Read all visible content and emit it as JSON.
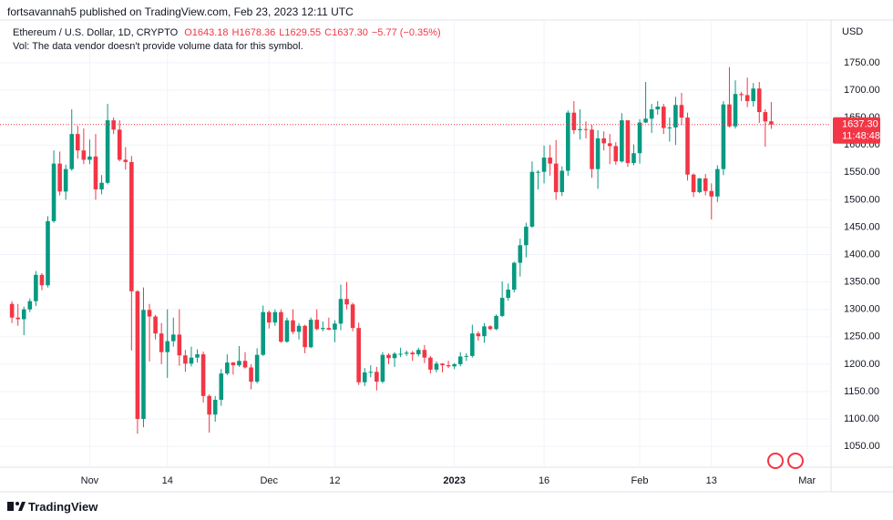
{
  "header": "fortsavannah5 published on TradingView.com, Feb 23, 2023 12:11 UTC",
  "footer": "TradingView",
  "chart_data": {
    "type": "candlestick",
    "symbol": "Ethereum / U.S. Dollar, 1D, CRYPTO",
    "legend": [
      "O1643.18",
      "H1678.36",
      "L1629.55",
      "C1637.30",
      "−5.77 (−0.35%)"
    ],
    "volume_note": "Vol: The data vendor doesn't provide volume data for this symbol.",
    "currency": "USD",
    "x": [
      "2022-10-19",
      "2022-10-20",
      "2022-10-21",
      "2022-10-22",
      "2022-10-23",
      "2022-10-24",
      "2022-10-25",
      "2022-10-26",
      "2022-10-27",
      "2022-10-28",
      "2022-10-29",
      "2022-10-30",
      "2022-10-31",
      "2022-11-01",
      "2022-11-02",
      "2022-11-03",
      "2022-11-04",
      "2022-11-05",
      "2022-11-06",
      "2022-11-07",
      "2022-11-08",
      "2022-11-09",
      "2022-11-10",
      "2022-11-11",
      "2022-11-12",
      "2022-11-13",
      "2022-11-14",
      "2022-11-15",
      "2022-11-16",
      "2022-11-17",
      "2022-11-18",
      "2022-11-19",
      "2022-11-20",
      "2022-11-21",
      "2022-11-22",
      "2022-11-23",
      "2022-11-24",
      "2022-11-25",
      "2022-11-26",
      "2022-11-27",
      "2022-11-28",
      "2022-11-29",
      "2022-11-30",
      "2022-12-01",
      "2022-12-02",
      "2022-12-03",
      "2022-12-04",
      "2022-12-05",
      "2022-12-06",
      "2022-12-07",
      "2022-12-08",
      "2022-12-09",
      "2022-12-10",
      "2022-12-11",
      "2022-12-12",
      "2022-12-13",
      "2022-12-14",
      "2022-12-15",
      "2022-12-16",
      "2022-12-17",
      "2022-12-18",
      "2022-12-19",
      "2022-12-20",
      "2022-12-21",
      "2022-12-22",
      "2022-12-23",
      "2022-12-24",
      "2022-12-25",
      "2022-12-26",
      "2022-12-27",
      "2022-12-28",
      "2022-12-29",
      "2022-12-30",
      "2022-12-31",
      "2023-01-01",
      "2023-01-02",
      "2023-01-03",
      "2023-01-04",
      "2023-01-05",
      "2023-01-06",
      "2023-01-07",
      "2023-01-08",
      "2023-01-09",
      "2023-01-10",
      "2023-01-11",
      "2023-01-12",
      "2023-01-13",
      "2023-01-14",
      "2023-01-15",
      "2023-01-16",
      "2023-01-17",
      "2023-01-18",
      "2023-01-19",
      "2023-01-20",
      "2023-01-21",
      "2023-01-22",
      "2023-01-23",
      "2023-01-24",
      "2023-01-25",
      "2023-01-26",
      "2023-01-27",
      "2023-01-28",
      "2023-01-29",
      "2023-01-30",
      "2023-01-31",
      "2023-02-01",
      "2023-02-02",
      "2023-02-03",
      "2023-02-04",
      "2023-02-05",
      "2023-02-06",
      "2023-02-07",
      "2023-02-08",
      "2023-02-09",
      "2023-02-10",
      "2023-02-11",
      "2023-02-12",
      "2023-02-13",
      "2023-02-14",
      "2023-02-15",
      "2023-02-16",
      "2023-02-17",
      "2023-02-18",
      "2023-02-19",
      "2023-02-20",
      "2023-02-21",
      "2023-02-22",
      "2023-02-23"
    ],
    "open": [
      1310,
      1285,
      1282,
      1300,
      1315,
      1363,
      1344,
      1461,
      1566,
      1515,
      1556,
      1620,
      1590,
      1573,
      1579,
      1519,
      1531,
      1645,
      1628,
      1573,
      1569,
      1333,
      1100,
      1299,
      1287,
      1256,
      1222,
      1242,
      1254,
      1216,
      1201,
      1212,
      1218,
      1142,
      1108,
      1135,
      1183,
      1203,
      1198,
      1206,
      1194,
      1168,
      1217,
      1295,
      1276,
      1295,
      1241,
      1280,
      1259,
      1270,
      1231,
      1281,
      1264,
      1266,
      1263,
      1274,
      1319,
      1309,
      1266,
      1167,
      1185,
      1186,
      1168,
      1217,
      1211,
      1219,
      1219,
      1221,
      1218,
      1226,
      1212,
      1190,
      1201,
      1198,
      1196,
      1200,
      1214,
      1215,
      1256,
      1251,
      1269,
      1264,
      1288,
      1321,
      1336,
      1385,
      1417,
      1451,
      1551,
      1551,
      1577,
      1566,
      1514,
      1553,
      1659,
      1627,
      1629,
      1628,
      1556,
      1612,
      1603,
      1598,
      1570,
      1645,
      1567,
      1585,
      1641,
      1648,
      1665,
      1670,
      1631,
      1632,
      1673,
      1650,
      1546,
      1514,
      1539,
      1516,
      1506,
      1556,
      1674,
      1634,
      1693,
      1691,
      1680,
      1703,
      1660,
      1643.18
    ],
    "high": [
      1315,
      1310,
      1305,
      1320,
      1370,
      1366,
      1470,
      1590,
      1588,
      1564,
      1665,
      1635,
      1630,
      1610,
      1620,
      1545,
      1675,
      1650,
      1645,
      1596,
      1580,
      1335,
      1340,
      1310,
      1290,
      1275,
      1300,
      1285,
      1300,
      1226,
      1232,
      1227,
      1223,
      1145,
      1142,
      1191,
      1218,
      1204,
      1233,
      1222,
      1200,
      1229,
      1307,
      1298,
      1300,
      1300,
      1285,
      1300,
      1275,
      1272,
      1285,
      1300,
      1278,
      1285,
      1280,
      1345,
      1350,
      1312,
      1276,
      1193,
      1198,
      1195,
      1222,
      1220,
      1222,
      1230,
      1225,
      1224,
      1230,
      1235,
      1215,
      1205,
      1202,
      1206,
      1202,
      1222,
      1220,
      1272,
      1260,
      1275,
      1271,
      1291,
      1351,
      1347,
      1387,
      1429,
      1458,
      1570,
      1554,
      1599,
      1600,
      1609,
      1561,
      1663,
      1680,
      1665,
      1643,
      1637,
      1627,
      1625,
      1620,
      1605,
      1658,
      1645,
      1601,
      1647,
      1715,
      1675,
      1680,
      1675,
      1650,
      1688,
      1695,
      1659,
      1548,
      1540,
      1547,
      1530,
      1563,
      1680,
      1742,
      1718,
      1697,
      1723,
      1713,
      1715,
      1665,
      1678.36
    ],
    "low": [
      1275,
      1270,
      1253,
      1295,
      1306,
      1335,
      1340,
      1458,
      1508,
      1500,
      1553,
      1575,
      1565,
      1565,
      1500,
      1510,
      1528,
      1620,
      1570,
      1555,
      1225,
      1073,
      1085,
      1205,
      1245,
      1200,
      1175,
      1232,
      1197,
      1186,
      1196,
      1203,
      1130,
      1075,
      1095,
      1124,
      1180,
      1181,
      1195,
      1192,
      1154,
      1165,
      1215,
      1265,
      1270,
      1239,
      1239,
      1255,
      1245,
      1220,
      1229,
      1262,
      1260,
      1262,
      1240,
      1262,
      1300,
      1260,
      1162,
      1160,
      1176,
      1152,
      1165,
      1200,
      1195,
      1213,
      1215,
      1206,
      1214,
      1202,
      1183,
      1185,
      1185,
      1193,
      1191,
      1196,
      1206,
      1212,
      1243,
      1239,
      1262,
      1262,
      1286,
      1316,
      1331,
      1360,
      1395,
      1449,
      1519,
      1530,
      1544,
      1500,
      1507,
      1544,
      1620,
      1610,
      1612,
      1540,
      1520,
      1590,
      1565,
      1564,
      1568,
      1560,
      1563,
      1566,
      1640,
      1622,
      1655,
      1620,
      1606,
      1600,
      1636,
      1535,
      1505,
      1512,
      1508,
      1464,
      1496,
      1545,
      1632,
      1630,
      1680,
      1669,
      1670,
      1640,
      1597,
      1629.55
    ],
    "close": [
      1285,
      1282,
      1300,
      1315,
      1363,
      1344,
      1461,
      1566,
      1515,
      1556,
      1620,
      1590,
      1573,
      1579,
      1519,
      1531,
      1645,
      1628,
      1573,
      1569,
      1333,
      1100,
      1299,
      1287,
      1256,
      1222,
      1242,
      1254,
      1216,
      1201,
      1212,
      1218,
      1142,
      1108,
      1135,
      1183,
      1203,
      1198,
      1206,
      1194,
      1168,
      1217,
      1295,
      1276,
      1295,
      1241,
      1280,
      1259,
      1270,
      1231,
      1281,
      1264,
      1266,
      1263,
      1274,
      1319,
      1309,
      1266,
      1167,
      1185,
      1186,
      1168,
      1217,
      1211,
      1219,
      1219,
      1221,
      1218,
      1226,
      1212,
      1190,
      1201,
      1198,
      1196,
      1200,
      1214,
      1215,
      1256,
      1251,
      1269,
      1264,
      1288,
      1321,
      1336,
      1385,
      1417,
      1451,
      1551,
      1551,
      1577,
      1566,
      1514,
      1553,
      1659,
      1627,
      1629,
      1628,
      1556,
      1612,
      1603,
      1598,
      1570,
      1645,
      1567,
      1585,
      1641,
      1648,
      1665,
      1670,
      1631,
      1632,
      1673,
      1650,
      1546,
      1514,
      1539,
      1516,
      1506,
      1556,
      1674,
      1634,
      1693,
      1691,
      1680,
      1703,
      1660,
      1643,
      1637.3
    ],
    "up_color": "#089981",
    "down_color": "#f23645",
    "xlim": [
      "2022-10-17",
      "2023-03-05"
    ],
    "xticks": [
      {
        "value": "2022-11-01",
        "label": "Nov"
      },
      {
        "value": "2022-11-14",
        "label": "14"
      },
      {
        "value": "2022-12-01",
        "label": "Dec"
      },
      {
        "value": "2022-12-12",
        "label": "12"
      },
      {
        "value": "2023-01-01",
        "label": "2023"
      },
      {
        "value": "2023-01-16",
        "label": "16"
      },
      {
        "value": "2023-02-01",
        "label": "Feb"
      },
      {
        "value": "2023-02-13",
        "label": "13"
      },
      {
        "value": "2023-03-01",
        "label": "Mar"
      }
    ],
    "ylim": [
      1012,
      1828
    ],
    "yticks": [
      {
        "value": 1050,
        "label": "1050.00"
      },
      {
        "value": 1100,
        "label": "1100.00"
      },
      {
        "value": 1150,
        "label": "1150.00"
      },
      {
        "value": 1200,
        "label": "1200.00"
      },
      {
        "value": 1250,
        "label": "1250.00"
      },
      {
        "value": 1300,
        "label": "1300.00"
      },
      {
        "value": 1350,
        "label": "1350.00"
      },
      {
        "value": 1400,
        "label": "1400.00"
      },
      {
        "value": 1450,
        "label": "1450.00"
      },
      {
        "value": 1500,
        "label": "1500.00"
      },
      {
        "value": 1550,
        "label": "1550.00"
      },
      {
        "value": 1600,
        "label": "1600.00"
      },
      {
        "value": 1650,
        "label": "1650.00"
      },
      {
        "value": 1700,
        "label": "1700.00"
      },
      {
        "value": 1750,
        "label": "1750.00"
      }
    ],
    "grid": true,
    "price_line": {
      "value": 1637.3,
      "label": "1637.30",
      "countdown": "11:48:48"
    }
  }
}
